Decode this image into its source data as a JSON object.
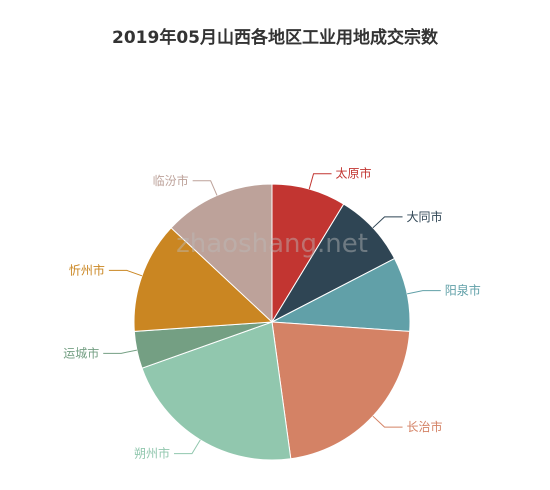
{
  "chart_data": {
    "type": "pie",
    "title": "2019年05月山西各地区工业用地成交宗数",
    "start_angle_deg": 90,
    "direction": "clockwise",
    "slices": [
      {
        "label": "太原市",
        "value": 2,
        "color": "#c23531"
      },
      {
        "label": "大同市",
        "value": 2,
        "color": "#2f4554"
      },
      {
        "label": "阳泉市",
        "value": 2,
        "color": "#61a0a8"
      },
      {
        "label": "长治市",
        "value": 5,
        "color": "#d48265"
      },
      {
        "label": "朔州市",
        "value": 5,
        "color": "#91c7ae"
      },
      {
        "label": "运城市",
        "value": 1,
        "color": "#749f83"
      },
      {
        "label": "忻州市",
        "value": 3,
        "color": "#ca8622"
      },
      {
        "label": "临汾市",
        "value": 3,
        "color": "#bda29a"
      }
    ]
  },
  "watermark": "zhaoshang.net"
}
